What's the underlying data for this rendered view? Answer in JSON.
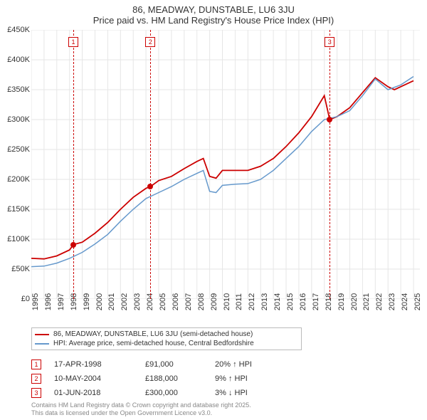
{
  "title": "86, MEADWAY, DUNSTABLE, LU6 3JU",
  "subtitle": "Price paid vs. HM Land Registry's House Price Index (HPI)",
  "chart": {
    "type": "line",
    "background_color": "#ffffff",
    "grid_color": "#e6e6e6",
    "axis_color": "#666666",
    "xlim": [
      1995,
      2025.5
    ],
    "ylim": [
      0,
      450
    ],
    "y_ticks": [
      0,
      50,
      100,
      150,
      200,
      250,
      300,
      350,
      400,
      450
    ],
    "y_tick_labels": [
      "£0",
      "£50K",
      "£100K",
      "£150K",
      "£200K",
      "£250K",
      "£300K",
      "£350K",
      "£400K",
      "£450K"
    ],
    "x_ticks": [
      1995,
      1996,
      1997,
      1998,
      1999,
      2000,
      2001,
      2002,
      2003,
      2004,
      2005,
      2006,
      2007,
      2008,
      2009,
      2010,
      2011,
      2012,
      2013,
      2014,
      2015,
      2016,
      2017,
      2018,
      2019,
      2020,
      2021,
      2022,
      2023,
      2024,
      2025
    ],
    "series": [
      {
        "name": "86, MEADWAY, DUNSTABLE, LU6 3JU (semi-detached house)",
        "color": "#cc0000",
        "line_width": 1.8,
        "data": [
          [
            1995,
            68
          ],
          [
            1996,
            67
          ],
          [
            1997,
            72
          ],
          [
            1998,
            82
          ],
          [
            1998.3,
            91
          ],
          [
            1999,
            95
          ],
          [
            2000,
            110
          ],
          [
            2001,
            128
          ],
          [
            2002,
            150
          ],
          [
            2003,
            170
          ],
          [
            2004,
            185
          ],
          [
            2004.35,
            188
          ],
          [
            2005,
            198
          ],
          [
            2006,
            205
          ],
          [
            2007,
            218
          ],
          [
            2008,
            230
          ],
          [
            2008.5,
            235
          ],
          [
            2009,
            205
          ],
          [
            2009.5,
            202
          ],
          [
            2010,
            215
          ],
          [
            2011,
            215
          ],
          [
            2012,
            215
          ],
          [
            2013,
            222
          ],
          [
            2014,
            235
          ],
          [
            2015,
            255
          ],
          [
            2016,
            278
          ],
          [
            2017,
            305
          ],
          [
            2018,
            340
          ],
          [
            2018.42,
            300
          ],
          [
            2019,
            305
          ],
          [
            2020,
            320
          ],
          [
            2021,
            345
          ],
          [
            2022,
            370
          ],
          [
            2023,
            355
          ],
          [
            2023.5,
            350
          ],
          [
            2024,
            355
          ],
          [
            2025,
            365
          ]
        ]
      },
      {
        "name": "HPI: Average price, semi-detached house, Central Bedfordshire",
        "color": "#6699cc",
        "line_width": 1.5,
        "data": [
          [
            1995,
            54
          ],
          [
            1996,
            55
          ],
          [
            1997,
            60
          ],
          [
            1998,
            68
          ],
          [
            1999,
            78
          ],
          [
            2000,
            92
          ],
          [
            2001,
            108
          ],
          [
            2002,
            130
          ],
          [
            2003,
            150
          ],
          [
            2004,
            168
          ],
          [
            2005,
            178
          ],
          [
            2006,
            188
          ],
          [
            2007,
            200
          ],
          [
            2008,
            210
          ],
          [
            2008.5,
            215
          ],
          [
            2009,
            180
          ],
          [
            2009.5,
            178
          ],
          [
            2010,
            190
          ],
          [
            2011,
            192
          ],
          [
            2012,
            193
          ],
          [
            2013,
            200
          ],
          [
            2014,
            215
          ],
          [
            2015,
            235
          ],
          [
            2016,
            255
          ],
          [
            2017,
            280
          ],
          [
            2018,
            300
          ],
          [
            2019,
            305
          ],
          [
            2020,
            315
          ],
          [
            2021,
            340
          ],
          [
            2022,
            368
          ],
          [
            2023,
            350
          ],
          [
            2024,
            358
          ],
          [
            2025,
            372
          ]
        ]
      }
    ],
    "markers": [
      {
        "n": "1",
        "x": 1998.3,
        "date": "17-APR-1998",
        "price": "£91,000",
        "delta_pct": "20%",
        "delta_dir": "↑",
        "delta_label": "HPI",
        "marker_color": "#cc0000",
        "dot_y": 91
      },
      {
        "n": "2",
        "x": 2004.35,
        "date": "10-MAY-2004",
        "price": "£188,000",
        "delta_pct": "9%",
        "delta_dir": "↑",
        "delta_label": "HPI",
        "marker_color": "#cc0000",
        "dot_y": 188
      },
      {
        "n": "3",
        "x": 2018.42,
        "date": "01-JUN-2018",
        "price": "£300,000",
        "delta_pct": "3%",
        "delta_dir": "↓",
        "delta_label": "HPI",
        "marker_color": "#cc0000",
        "dot_y": 300
      }
    ],
    "title_fontsize": 13,
    "label_fontsize": 11
  },
  "legend": {
    "items": [
      {
        "color": "#cc0000",
        "label": "86, MEADWAY, DUNSTABLE, LU6 3JU (semi-detached house)"
      },
      {
        "color": "#6699cc",
        "label": "HPI: Average price, semi-detached house, Central Bedfordshire"
      }
    ]
  },
  "footer": {
    "line1": "Contains HM Land Registry data © Crown copyright and database right 2025.",
    "line2": "This data is licensed under the Open Government Licence v3.0."
  }
}
